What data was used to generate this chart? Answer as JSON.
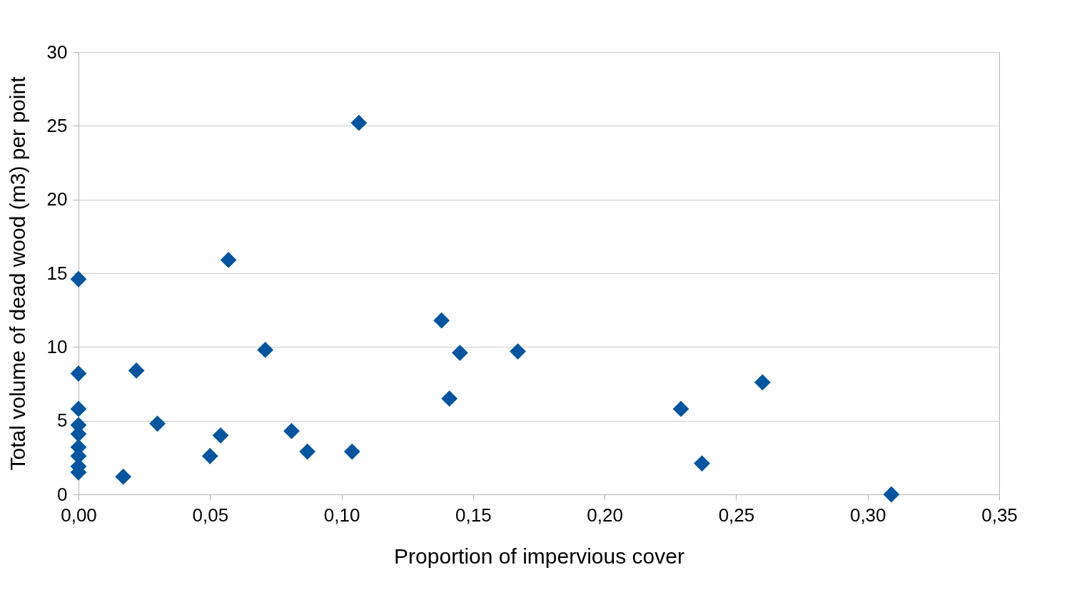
{
  "chart_data": {
    "type": "scatter",
    "xlabel": "Proportion of impervious cover",
    "ylabel": "Total volume of dead wood (m3) per point",
    "x": [
      0.1066,
      0.057,
      0,
      0.138,
      0.071,
      0.145,
      0.167,
      0,
      0.022,
      0.26,
      0.141,
      0.229,
      0.03,
      0.081,
      0.054,
      0.087,
      0.104,
      0.05,
      0.237,
      0.017,
      0.309,
      0,
      0,
      0,
      0,
      0,
      0,
      0
    ],
    "series": [
      {
        "color": "#0055a0",
        "values": [
          25.2,
          15.9,
          14.6,
          11.8,
          9.8,
          9.6,
          9.7,
          8.2,
          8.4,
          7.6,
          6.5,
          5.8,
          4.8,
          4.3,
          4.0,
          2.9,
          2.9,
          2.6,
          2.1,
          1.2,
          0.0,
          5.8,
          4.7,
          4.1,
          3.2,
          2.6,
          1.9,
          1.5
        ]
      }
    ],
    "xlim": [
      0,
      0.35
    ],
    "ylim": [
      0,
      30
    ],
    "xticks": [
      {
        "value": 0,
        "label": "0,00"
      },
      {
        "value": 0.05,
        "label": "0,05"
      },
      {
        "value": 0.1,
        "label": "0,10"
      },
      {
        "value": 0.15,
        "label": "0,15"
      },
      {
        "value": 0.2,
        "label": "0,20"
      },
      {
        "value": 0.25,
        "label": "0,25"
      },
      {
        "value": 0.3,
        "label": "0,30"
      },
      {
        "value": 0.35,
        "label": "0,35"
      }
    ],
    "yticks": [
      0,
      5,
      10,
      15,
      20,
      25,
      30
    ],
    "grid": "y",
    "marker": "diamond"
  }
}
